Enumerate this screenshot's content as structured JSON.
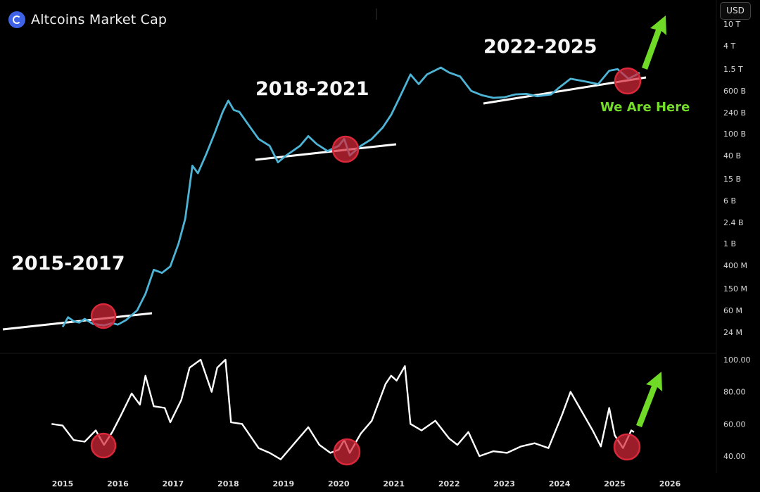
{
  "header": {
    "title": "Altcoins Market Cap",
    "currency": "USD",
    "logo_icon": "altcoins-logo-icon"
  },
  "annotations": {
    "periods": [
      "2015-2017",
      "2018-2021",
      "2022-2025"
    ],
    "current": "We Are Here",
    "arrow_color": "#6fdb27",
    "circle_color": "#d8283a"
  },
  "chart_data": [
    {
      "type": "line",
      "series": [
        {
          "color": "#4db4d6",
          "values": [
            [
              2015.0,
              30000000.0
            ],
            [
              2015.1,
              45000000.0
            ],
            [
              2015.2,
              38000000.0
            ],
            [
              2015.3,
              36000000.0
            ],
            [
              2015.4,
              42000000.0
            ],
            [
              2015.55,
              34000000.0
            ],
            [
              2015.75,
              32000000.0
            ],
            [
              2015.9,
              35000000.0
            ],
            [
              2016.0,
              33000000.0
            ],
            [
              2016.15,
              40000000.0
            ],
            [
              2016.35,
              60000000.0
            ],
            [
              2016.5,
              120000000.0
            ],
            [
              2016.65,
              330000000.0
            ],
            [
              2016.8,
              290000000.0
            ],
            [
              2016.95,
              380000000.0
            ],
            [
              2017.1,
              1000000000.0
            ],
            [
              2017.22,
              2800000000.0
            ],
            [
              2017.35,
              26000000000.0
            ],
            [
              2017.45,
              19000000000.0
            ],
            [
              2017.6,
              42000000000.0
            ],
            [
              2017.75,
              100000000000.0
            ],
            [
              2017.9,
              250000000000.0
            ],
            [
              2018.0,
              400000000000.0
            ],
            [
              2018.1,
              270000000000.0
            ],
            [
              2018.2,
              250000000000.0
            ],
            [
              2018.4,
              130000000000.0
            ],
            [
              2018.55,
              80000000000.0
            ],
            [
              2018.75,
              60000000000.0
            ],
            [
              2018.9,
              30000000000.0
            ],
            [
              2019.05,
              40000000000.0
            ],
            [
              2019.3,
              60000000000.0
            ],
            [
              2019.45,
              90000000000.0
            ],
            [
              2019.6,
              65000000000.0
            ],
            [
              2019.8,
              48000000000.0
            ],
            [
              2020.0,
              60000000000.0
            ],
            [
              2020.1,
              80000000000.0
            ],
            [
              2020.2,
              40000000000.0
            ],
            [
              2020.4,
              60000000000.0
            ],
            [
              2020.6,
              80000000000.0
            ],
            [
              2020.8,
              130000000000.0
            ],
            [
              2020.95,
              220000000000.0
            ],
            [
              2021.1,
              450000000000.0
            ],
            [
              2021.3,
              1200000000000.0
            ],
            [
              2021.45,
              800000000000.0
            ],
            [
              2021.6,
              1200000000000.0
            ],
            [
              2021.85,
              1600000000000.0
            ],
            [
              2022.0,
              1300000000000.0
            ],
            [
              2022.2,
              1100000000000.0
            ],
            [
              2022.4,
              600000000000.0
            ],
            [
              2022.6,
              500000000000.0
            ],
            [
              2022.8,
              450000000000.0
            ],
            [
              2023.0,
              460000000000.0
            ],
            [
              2023.2,
              520000000000.0
            ],
            [
              2023.4,
              530000000000.0
            ],
            [
              2023.6,
              480000000000.0
            ],
            [
              2023.85,
              520000000000.0
            ],
            [
              2024.0,
              700000000000.0
            ],
            [
              2024.2,
              1000000000000.0
            ],
            [
              2024.45,
              900000000000.0
            ],
            [
              2024.7,
              800000000000.0
            ],
            [
              2024.9,
              1400000000000.0
            ],
            [
              2025.05,
              1500000000000.0
            ],
            [
              2025.25,
              1000000000000.0
            ],
            [
              2025.4,
              1200000000000.0
            ],
            [
              2025.45,
              1300000000000.0
            ]
          ]
        }
      ],
      "y_scale": "log",
      "ytick_labels": [
        "10 T",
        "4 T",
        "1.5 T",
        "600 B",
        "240 B",
        "100 B",
        "40 B",
        "15 B",
        "6 B",
        "2.4 B",
        "1 B",
        "400 M",
        "150 M",
        "60 M",
        "24 M"
      ],
      "ytick_values": [
        10000000000000.0,
        4000000000000.0,
        1500000000000.0,
        600000000000.0,
        240000000000.0,
        100000000000.0,
        40000000000.0,
        15000000000.0,
        6000000000.0,
        2400000000.0,
        1000000000.0,
        400000000.0,
        150000000.0,
        60000000.0,
        24000000.0
      ]
    },
    {
      "type": "line",
      "series": [
        {
          "color": "#ffffff",
          "values": [
            [
              2014.8,
              60
            ],
            [
              2015.0,
              59
            ],
            [
              2015.2,
              50
            ],
            [
              2015.4,
              49
            ],
            [
              2015.6,
              56
            ],
            [
              2015.75,
              47
            ],
            [
              2015.9,
              55
            ],
            [
              2016.05,
              65
            ],
            [
              2016.25,
              79
            ],
            [
              2016.4,
              72
            ],
            [
              2016.5,
              90
            ],
            [
              2016.65,
              71
            ],
            [
              2016.85,
              70
            ],
            [
              2016.95,
              61
            ],
            [
              2017.15,
              75
            ],
            [
              2017.3,
              95
            ],
            [
              2017.5,
              100
            ],
            [
              2017.7,
              80
            ],
            [
              2017.8,
              95
            ],
            [
              2017.95,
              100
            ],
            [
              2018.05,
              61
            ],
            [
              2018.25,
              60
            ],
            [
              2018.55,
              45
            ],
            [
              2018.75,
              42
            ],
            [
              2018.95,
              38
            ],
            [
              2019.2,
              48
            ],
            [
              2019.45,
              58
            ],
            [
              2019.65,
              47
            ],
            [
              2019.85,
              42
            ],
            [
              2020.0,
              44
            ],
            [
              2020.1,
              50
            ],
            [
              2020.2,
              42
            ],
            [
              2020.4,
              54
            ],
            [
              2020.6,
              62
            ],
            [
              2020.85,
              85
            ],
            [
              2020.95,
              90
            ],
            [
              2021.05,
              87
            ],
            [
              2021.2,
              96
            ],
            [
              2021.3,
              60
            ],
            [
              2021.5,
              56
            ],
            [
              2021.75,
              62
            ],
            [
              2022.0,
              51
            ],
            [
              2022.15,
              47
            ],
            [
              2022.35,
              55
            ],
            [
              2022.55,
              40
            ],
            [
              2022.8,
              43
            ],
            [
              2023.05,
              42
            ],
            [
              2023.3,
              46
            ],
            [
              2023.55,
              48
            ],
            [
              2023.8,
              45
            ],
            [
              2024.05,
              66
            ],
            [
              2024.2,
              80
            ],
            [
              2024.4,
              68
            ],
            [
              2024.6,
              56
            ],
            [
              2024.75,
              46
            ],
            [
              2024.9,
              70
            ],
            [
              2025.0,
              53
            ],
            [
              2025.15,
              45
            ],
            [
              2025.3,
              56
            ],
            [
              2025.35,
              55
            ]
          ]
        }
      ],
      "y_scale": "linear",
      "ylim": [
        40,
        100
      ],
      "ytick_labels": [
        "100.00",
        "80.00",
        "60.00",
        "40.00"
      ],
      "ytick_values": [
        100,
        80,
        60,
        40
      ]
    }
  ],
  "x_axis": {
    "labels": [
      "2015",
      "2016",
      "2017",
      "2018",
      "2019",
      "2020",
      "2021",
      "2022",
      "2023",
      "2024",
      "2025",
      "2026"
    ],
    "values": [
      2015,
      2016,
      2017,
      2018,
      2019,
      2020,
      2021,
      2022,
      2023,
      2024,
      2025,
      2026
    ]
  }
}
